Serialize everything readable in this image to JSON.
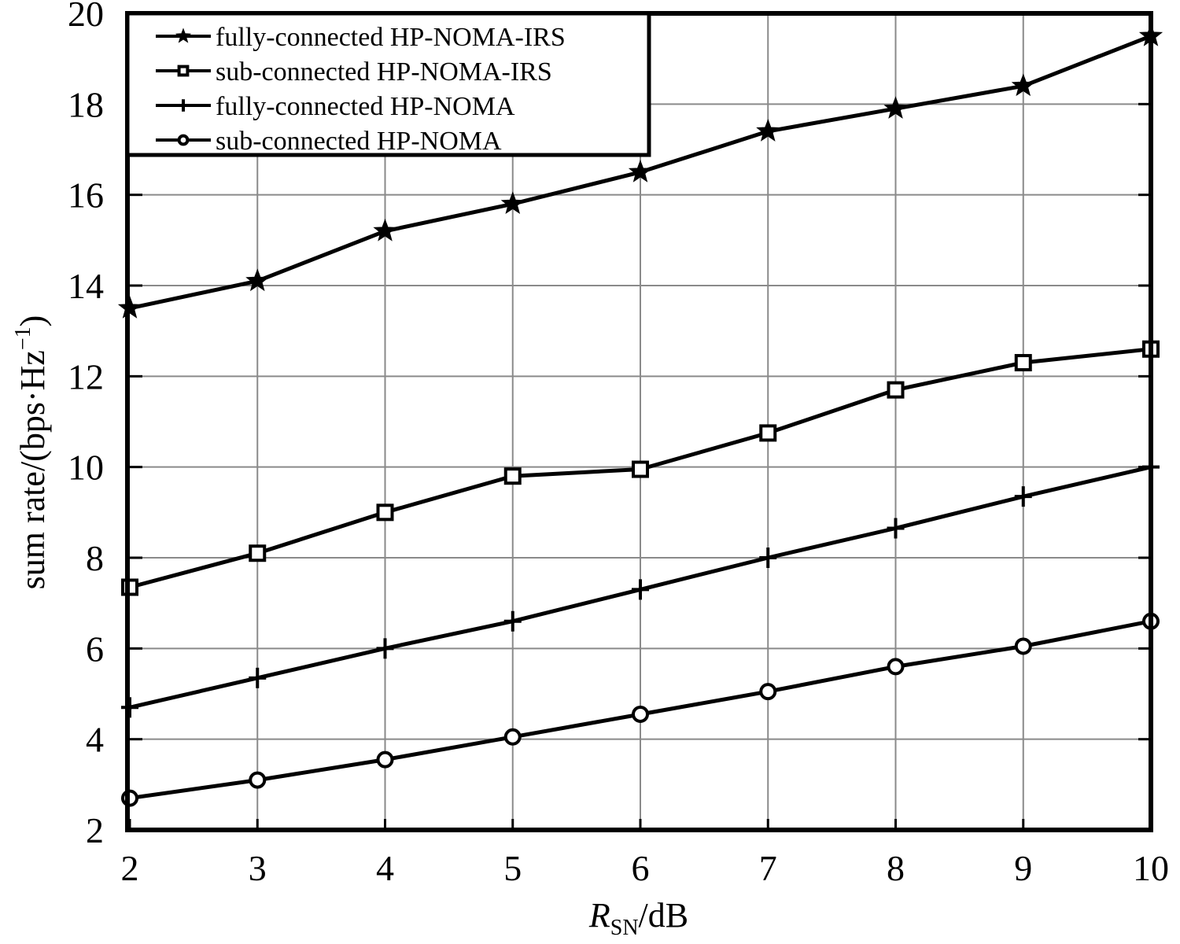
{
  "chart_data": {
    "type": "line",
    "title": "",
    "x": [
      2,
      3,
      4,
      5,
      6,
      7,
      8,
      9,
      10
    ],
    "xlim": [
      2,
      10
    ],
    "ylim": [
      2,
      20
    ],
    "x_ticks": [
      "2",
      "3",
      "4",
      "5",
      "6",
      "7",
      "8",
      "9",
      "10"
    ],
    "y_ticks": [
      "2",
      "4",
      "6",
      "8",
      "10",
      "12",
      "14",
      "16",
      "18",
      "20"
    ],
    "xlabel": {
      "main": "R",
      "sub": "SN",
      "rest": "/dB"
    },
    "ylabel": {
      "main": "sum rate/(bps·Hz",
      "sup": "−1",
      "close": ")"
    },
    "grid": true,
    "legend_position": "top-left",
    "series": [
      {
        "name": "fully-connected HP-NOMA-IRS",
        "marker": "star",
        "values": [
          13.5,
          14.1,
          15.2,
          15.8,
          16.5,
          17.4,
          17.9,
          18.4,
          19.5
        ]
      },
      {
        "name": "sub-connected HP-NOMA-IRS",
        "marker": "square",
        "values": [
          7.35,
          8.1,
          9.0,
          9.8,
          9.95,
          10.75,
          11.7,
          12.3,
          12.6
        ]
      },
      {
        "name": "fully-connected HP-NOMA",
        "marker": "plus",
        "values": [
          4.7,
          5.35,
          6.0,
          6.6,
          7.3,
          8.0,
          8.65,
          9.35,
          10.0
        ]
      },
      {
        "name": "sub-connected HP-NOMA",
        "marker": "circle",
        "values": [
          2.7,
          3.1,
          3.55,
          4.05,
          4.55,
          5.05,
          5.6,
          6.05,
          6.6
        ]
      }
    ]
  }
}
